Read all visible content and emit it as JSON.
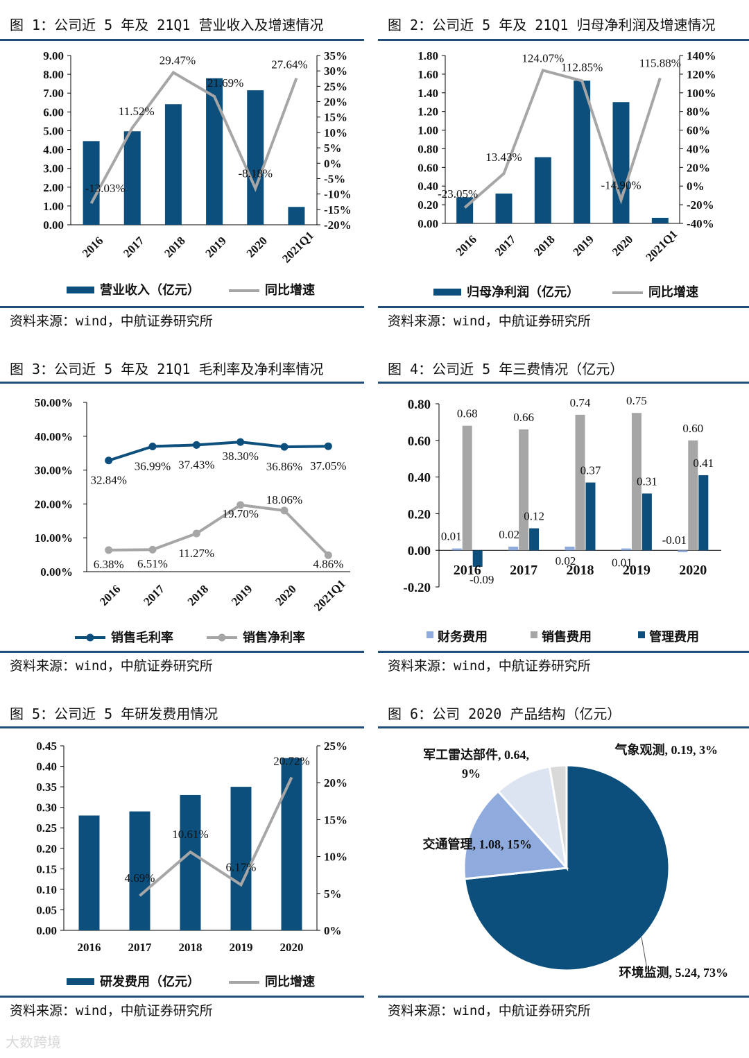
{
  "colors": {
    "navy": "#0d4f7c",
    "gray": "#a6a6a6",
    "light_blue": "#8faadc",
    "pale_blue": "#dbe4f0",
    "light_gray": "#d9d9d9"
  },
  "source_text": "资料来源：wind，中航证券研究所",
  "watermark": "大数跨境",
  "chart_data": [
    {
      "id": "fig1",
      "type": "bar+line",
      "title": "图 1：公司近 5 年及 21Q1 营业收入及增速情况",
      "categories": [
        "2016",
        "2017",
        "2018",
        "2019",
        "2020",
        "2021Q1"
      ],
      "left_ylim": [
        0,
        9
      ],
      "left_ticks": [
        "9.00",
        "8.00",
        "7.00",
        "6.00",
        "5.00",
        "4.00",
        "3.00",
        "2.00",
        "1.00",
        "0.00"
      ],
      "right_ylim": [
        -20,
        35
      ],
      "right_ticks": [
        "35%",
        "30%",
        "25%",
        "20%",
        "15%",
        "10%",
        "5%",
        "0%",
        "-5%",
        "-10%",
        "-15%",
        "-20%"
      ],
      "series": [
        {
          "name": "营业收入（亿元）",
          "kind": "bar",
          "values": [
            4.45,
            4.97,
            6.41,
            7.79,
            7.15,
            0.95
          ]
        },
        {
          "name": "同比增速",
          "kind": "line",
          "values": [
            -13.03,
            11.52,
            29.47,
            21.69,
            -8.18,
            27.64
          ],
          "labels": [
            "-13.03%",
            "11.52%",
            "29.47%",
            "21.69%",
            "-8.18%",
            "27.64%"
          ]
        }
      ]
    },
    {
      "id": "fig2",
      "type": "bar+line",
      "title": "图 2：公司近 5 年及 21Q1 归母净利润及增速情况",
      "categories": [
        "2016",
        "2017",
        "2018",
        "2019",
        "2020",
        "2021Q1"
      ],
      "left_ylim": [
        0,
        1.8
      ],
      "left_ticks": [
        "1.80",
        "1.60",
        "1.40",
        "1.20",
        "1.00",
        "0.80",
        "0.60",
        "0.40",
        "0.20",
        "0.00"
      ],
      "right_ylim": [
        -40,
        140
      ],
      "right_ticks": [
        "140%",
        "120%",
        "100%",
        "80%",
        "60%",
        "40%",
        "20%",
        "0%",
        "-20%",
        "-40%"
      ],
      "series": [
        {
          "name": "归母净利润（亿元）",
          "kind": "bar",
          "values": [
            0.28,
            0.32,
            0.71,
            1.53,
            1.3,
            0.06
          ]
        },
        {
          "name": "同比增速",
          "kind": "line",
          "values": [
            -23.05,
            13.43,
            124.07,
            112.85,
            -14.9,
            115.88
          ],
          "labels": [
            "-23.05%",
            "13.43%",
            "124.07%",
            "112.85%",
            "-14.90%",
            "115.88%"
          ]
        }
      ]
    },
    {
      "id": "fig3",
      "type": "line",
      "title": "图 3：公司近 5 年及 21Q1 毛利率及净利率情况",
      "categories": [
        "2016",
        "2017",
        "2018",
        "2019",
        "2020",
        "2021Q1"
      ],
      "ylim": [
        0,
        50
      ],
      "ticks": [
        "50.00%",
        "40.00%",
        "30.00%",
        "20.00%",
        "10.00%",
        "0.00%"
      ],
      "series": [
        {
          "name": "销售毛利率",
          "values": [
            32.84,
            36.99,
            37.43,
            38.3,
            36.86,
            37.05
          ],
          "labels": [
            "32.84%",
            "36.99%",
            "37.43%",
            "38.30%",
            "36.86%",
            "37.05%"
          ]
        },
        {
          "name": "销售净利率",
          "values": [
            6.38,
            6.51,
            11.27,
            19.7,
            18.06,
            4.86
          ],
          "labels": [
            "6.38%",
            "6.51%",
            "11.27%",
            "19.70%",
            "18.06%",
            "4.86%"
          ]
        }
      ]
    },
    {
      "id": "fig4",
      "type": "bar",
      "title": "图 4：公司近 5 年三费情况（亿元）",
      "categories": [
        "2016",
        "2017",
        "2018",
        "2019",
        "2020"
      ],
      "ylim": [
        -0.2,
        0.8
      ],
      "ticks": [
        "0.80",
        "0.60",
        "0.40",
        "0.20",
        "0.00",
        "-0.20"
      ],
      "series": [
        {
          "name": "财务费用",
          "values": [
            0.01,
            0.02,
            0.02,
            0.01,
            -0.01
          ],
          "labels": [
            "0.01",
            "0.02",
            "0.02",
            "0.01",
            "-0.01"
          ]
        },
        {
          "name": "销售费用",
          "values": [
            0.68,
            0.66,
            0.74,
            0.75,
            0.6
          ],
          "labels": [
            "0.68",
            "0.66",
            "0.74",
            "0.75",
            "0.60"
          ]
        },
        {
          "name": "管理费用",
          "values": [
            -0.09,
            0.12,
            0.37,
            0.31,
            0.41
          ],
          "labels": [
            "-0.09",
            "0.12",
            "0.37",
            "0.31",
            "0.41"
          ]
        }
      ]
    },
    {
      "id": "fig5",
      "type": "bar+line",
      "title": "图 5：公司近 5 年研发费用情况",
      "categories": [
        "2016",
        "2017",
        "2018",
        "2019",
        "2020"
      ],
      "left_ylim": [
        0,
        0.45
      ],
      "left_ticks": [
        "0.45",
        "0.40",
        "0.35",
        "0.30",
        "0.25",
        "0.20",
        "0.15",
        "0.10",
        "0.05",
        "0.00"
      ],
      "right_ylim": [
        0,
        25
      ],
      "right_ticks": [
        "25%",
        "20%",
        "15%",
        "10%",
        "5%",
        "0%"
      ],
      "series": [
        {
          "name": "研发费用（亿元）",
          "kind": "bar",
          "values": [
            0.28,
            0.29,
            0.33,
            0.35,
            0.42
          ]
        },
        {
          "name": "同比增速",
          "kind": "line",
          "values": [
            null,
            4.69,
            10.61,
            6.17,
            20.72
          ],
          "labels": [
            "",
            "4.69%",
            "10.61%",
            "6.17%",
            "20.72%"
          ]
        }
      ]
    },
    {
      "id": "fig6",
      "type": "pie",
      "title": "图 6：公司 2020 产品结构（亿元）",
      "slices": [
        {
          "name": "环境监测",
          "value": 5.24,
          "label": "环境监测, 5.24, 73%"
        },
        {
          "name": "交通管理",
          "value": 1.08,
          "label": "交通管理, 1.08, 15%"
        },
        {
          "name": "军工雷达部件",
          "value": 0.64,
          "label_l1": "军工雷达部件, 0.64,",
          "label_l2": "9%"
        },
        {
          "name": "气象观测",
          "value": 0.19,
          "label": "气象观测, 0.19, 3%"
        }
      ]
    }
  ]
}
